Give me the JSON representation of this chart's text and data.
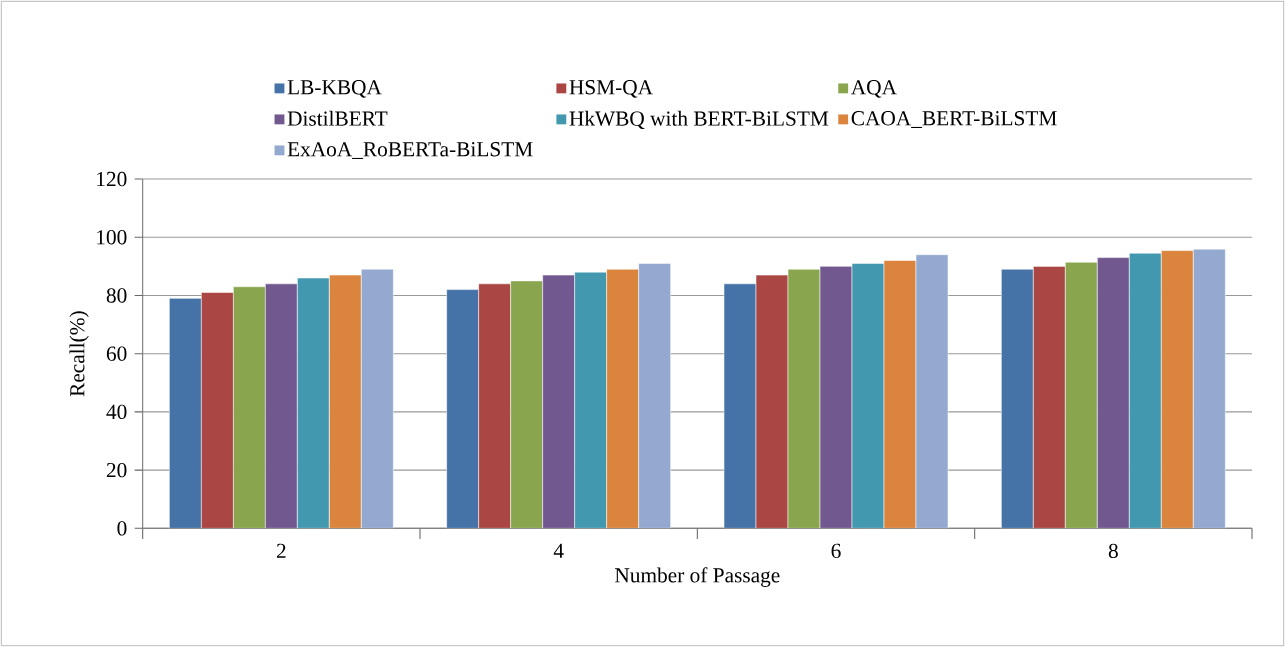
{
  "chart_data": {
    "type": "bar",
    "xlabel": "Number of Passage",
    "ylabel": "Recall(%)",
    "categories": [
      "2",
      "4",
      "6",
      "8"
    ],
    "series": [
      {
        "name": "LB-KBQA",
        "color": "#4572a7",
        "values": [
          79,
          82,
          84,
          89
        ]
      },
      {
        "name": "HSM-QA",
        "color": "#aa4643",
        "values": [
          81,
          84,
          87,
          90
        ]
      },
      {
        "name": "AQA",
        "color": "#89a54e",
        "values": [
          83,
          85,
          89,
          91.4
        ]
      },
      {
        "name": "DistilBERT",
        "color": "#71588f",
        "values": [
          84,
          87,
          90,
          93
        ]
      },
      {
        "name": "HkWBQ with BERT-BiLSTM",
        "color": "#4198af",
        "values": [
          86,
          88,
          91,
          94.5
        ]
      },
      {
        "name": "CAOA_BERT-BiLSTM",
        "color": "#db843d",
        "values": [
          87,
          89,
          92,
          95.4
        ]
      },
      {
        "name": "ExAoA_RoBERTa-BiLSTM",
        "color": "#93a9cf",
        "values": [
          89,
          91,
          94,
          95.9
        ]
      }
    ],
    "ylim": [
      0,
      120
    ],
    "yticks": [
      0,
      20,
      40,
      60,
      80,
      100,
      120
    ],
    "grid": "y",
    "legend": "top"
  }
}
